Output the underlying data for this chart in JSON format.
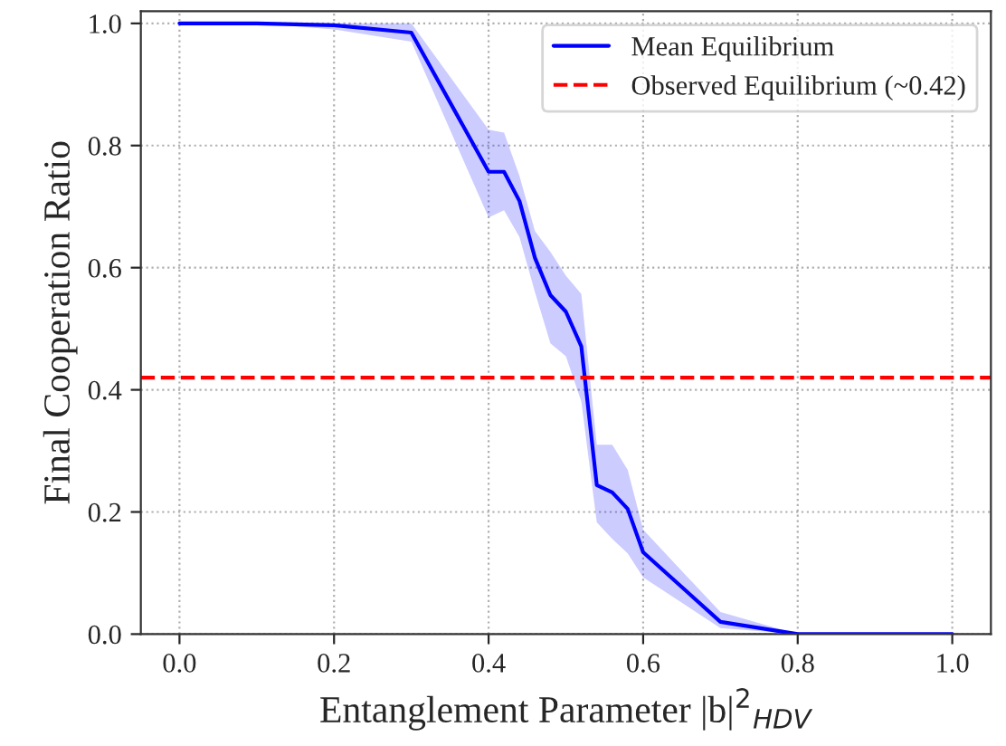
{
  "chart_data": {
    "type": "line",
    "xlabel": "Entanglement Parameter |b|$^{2}$$_{HDV}$",
    "ylabel": "Final Cooperation Ratio",
    "x": [
      0,
      0.1,
      0.2,
      0.3,
      0.4,
      0.42,
      0.44,
      0.46,
      0.48,
      0.5,
      0.52,
      0.54,
      0.56,
      0.58,
      0.6,
      0.7,
      0.8,
      0.9,
      1.0
    ],
    "series": [
      {
        "name": "Mean Equilibrium",
        "color": "#0000ff",
        "values": [
          1.0,
          1.0,
          0.997,
          0.985,
          0.757,
          0.757,
          0.709,
          0.616,
          0.555,
          0.528,
          0.471,
          0.244,
          0.232,
          0.205,
          0.134,
          0.02,
          0.0,
          0.0,
          0.0
        ],
        "lower": [
          1.0,
          1.0,
          0.99,
          0.97,
          0.682,
          0.694,
          0.65,
          0.56,
          0.476,
          0.455,
          0.381,
          0.183,
          0.156,
          0.132,
          0.093,
          0.01,
          0.0,
          0.0,
          0.0
        ],
        "upper": [
          1.0,
          1.0,
          1.0,
          1.0,
          0.826,
          0.821,
          0.75,
          0.66,
          0.626,
          0.587,
          0.557,
          0.31,
          0.31,
          0.269,
          0.171,
          0.036,
          0.0,
          0.0,
          0.0
        ]
      }
    ],
    "ref_lines": [
      {
        "axis": "y",
        "value": 0.42,
        "label": "Observed Equilibrium (~0.42)",
        "color": "#ff0000",
        "line_style": "dashed"
      }
    ],
    "xlim": [
      -0.05,
      1.05
    ],
    "ylim": [
      0,
      1.02
    ],
    "xticks": [
      {
        "value": 0,
        "label": "0.0"
      },
      {
        "value": 0.2,
        "label": "0.2"
      },
      {
        "value": 0.4,
        "label": "0.4"
      },
      {
        "value": 0.6,
        "label": "0.6"
      },
      {
        "value": 0.8,
        "label": "0.8"
      },
      {
        "value": 1.0,
        "label": "1.0"
      }
    ],
    "yticks": [
      {
        "value": 0,
        "label": "0.0"
      },
      {
        "value": 0.2,
        "label": "0.2"
      },
      {
        "value": 0.4,
        "label": "0.4"
      },
      {
        "value": 0.6,
        "label": "0.6"
      },
      {
        "value": 0.8,
        "label": "0.8"
      },
      {
        "value": 1.0,
        "label": "1.0"
      }
    ],
    "grid": true,
    "legend": "top right",
    "marker": "none",
    "line_style": "solid"
  }
}
